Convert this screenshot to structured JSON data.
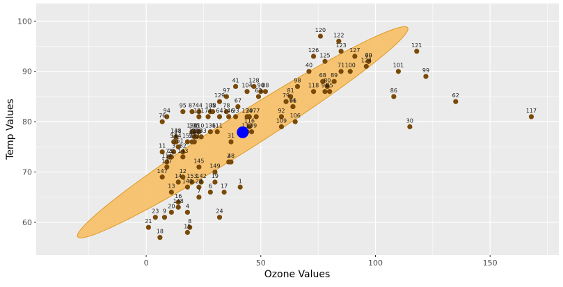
{
  "chart_data": {
    "type": "scatter",
    "title": "",
    "xlabel": "Ozone Values",
    "ylabel": "Temp Values",
    "xlim": [
      -48,
      180
    ],
    "ylim": [
      53.5,
      103.5
    ],
    "x_ticks": [
      0,
      50,
      100,
      150
    ],
    "y_ticks": [
      60,
      70,
      80,
      90,
      100
    ],
    "grid": true,
    "legend": "none",
    "colors": {
      "panel_background": "#ebebeb",
      "grid": "#ffffff",
      "points": "#7a4a08",
      "ellipse_fill": "#f5c16c",
      "ellipse_stroke": "#e09a24",
      "centroid": "#0000ff"
    },
    "centroid": {
      "x": 42.1,
      "y": 77.9
    },
    "ellipse": {
      "center": [
        42.1,
        77.9
      ],
      "semi_axes": [
        84.0,
        7.5
      ],
      "angle_deg": 31
    },
    "points": [
      {
        "label": "1",
        "x": 41,
        "y": 67
      },
      {
        "label": "2",
        "x": 36,
        "y": 72
      },
      {
        "label": "3",
        "x": 12,
        "y": 74
      },
      {
        "label": "4",
        "x": 18,
        "y": 62
      },
      {
        "label": "6",
        "x": 28,
        "y": 66
      },
      {
        "label": "7",
        "x": 23,
        "y": 65
      },
      {
        "label": "8",
        "x": 19,
        "y": 59
      },
      {
        "label": "9",
        "x": 8,
        "y": 61
      },
      {
        "label": "11",
        "x": 7,
        "y": 74
      },
      {
        "label": "12",
        "x": 16,
        "y": 69
      },
      {
        "label": "13",
        "x": 11,
        "y": 66
      },
      {
        "label": "14",
        "x": 14,
        "y": 68
      },
      {
        "label": "15",
        "x": 18,
        "y": 58
      },
      {
        "label": "16",
        "x": 14,
        "y": 64
      },
      {
        "label": "17",
        "x": 34,
        "y": 66
      },
      {
        "label": "18",
        "x": 6,
        "y": 57
      },
      {
        "label": "19",
        "x": 30,
        "y": 68
      },
      {
        "label": "20",
        "x": 11,
        "y": 62
      },
      {
        "label": "21",
        "x": 1,
        "y": 59
      },
      {
        "label": "22",
        "x": 11,
        "y": 73
      },
      {
        "label": "23",
        "x": 4,
        "y": 61
      },
      {
        "label": "24",
        "x": 32,
        "y": 61
      },
      {
        "label": "28",
        "x": 23,
        "y": 67
      },
      {
        "label": "29",
        "x": 45,
        "y": 81
      },
      {
        "label": "30",
        "x": 115,
        "y": 79
      },
      {
        "label": "31",
        "x": 37,
        "y": 76
      },
      {
        "label": "38",
        "x": 29,
        "y": 82
      },
      {
        "label": "40",
        "x": 71,
        "y": 90
      },
      {
        "label": "41",
        "x": 39,
        "y": 87
      },
      {
        "label": "44",
        "x": 23,
        "y": 82
      },
      {
        "label": "47",
        "x": 21,
        "y": 77
      },
      {
        "label": "48",
        "x": 37,
        "y": 72
      },
      {
        "label": "50",
        "x": 20,
        "y": 76
      },
      {
        "label": "51",
        "x": 12,
        "y": 76
      },
      {
        "label": "62",
        "x": 135,
        "y": 84
      },
      {
        "label": "63",
        "x": 49,
        "y": 85
      },
      {
        "label": "64",
        "x": 32,
        "y": 81
      },
      {
        "label": "66",
        "x": 64,
        "y": 83
      },
      {
        "label": "67",
        "x": 40,
        "y": 83
      },
      {
        "label": "68",
        "x": 77,
        "y": 88
      },
      {
        "label": "69",
        "x": 97,
        "y": 92
      },
      {
        "label": "70",
        "x": 97,
        "y": 92
      },
      {
        "label": "71",
        "x": 85,
        "y": 90
      },
      {
        "label": "73",
        "x": 10,
        "y": 73
      },
      {
        "label": "74",
        "x": 27,
        "y": 81
      },
      {
        "label": "76",
        "x": 7,
        "y": 80
      },
      {
        "label": "77",
        "x": 48,
        "y": 81
      },
      {
        "label": "78",
        "x": 35,
        "y": 82
      },
      {
        "label": "79",
        "x": 61,
        "y": 84
      },
      {
        "label": "80",
        "x": 79,
        "y": 87
      },
      {
        "label": "81",
        "x": 63,
        "y": 85
      },
      {
        "label": "82",
        "x": 16,
        "y": 74
      },
      {
        "label": "85",
        "x": 80,
        "y": 86
      },
      {
        "label": "86",
        "x": 108,
        "y": 85
      },
      {
        "label": "87",
        "x": 20,
        "y": 82
      },
      {
        "label": "88",
        "x": 52,
        "y": 86
      },
      {
        "label": "89",
        "x": 82,
        "y": 88
      },
      {
        "label": "90",
        "x": 50,
        "y": 86
      },
      {
        "label": "91",
        "x": 64,
        "y": 83
      },
      {
        "label": "92",
        "x": 59,
        "y": 81
      },
      {
        "label": "93",
        "x": 39,
        "y": 81
      },
      {
        "label": "94",
        "x": 9,
        "y": 81
      },
      {
        "label": "95",
        "x": 16,
        "y": 82
      },
      {
        "label": "96",
        "x": 78,
        "y": 86
      },
      {
        "label": "97",
        "x": 35,
        "y": 85
      },
      {
        "label": "98",
        "x": 66,
        "y": 87
      },
      {
        "label": "99",
        "x": 122,
        "y": 89
      },
      {
        "label": "100",
        "x": 89,
        "y": 90
      },
      {
        "label": "101",
        "x": 110,
        "y": 90
      },
      {
        "label": "104",
        "x": 44,
        "y": 86
      },
      {
        "label": "105",
        "x": 28,
        "y": 82
      },
      {
        "label": "106",
        "x": 65,
        "y": 80
      },
      {
        "label": "108",
        "x": 22,
        "y": 77
      },
      {
        "label": "109",
        "x": 59,
        "y": 79
      },
      {
        "label": "110",
        "x": 23,
        "y": 78
      },
      {
        "label": "111",
        "x": 31,
        "y": 78
      },
      {
        "label": "112",
        "x": 44,
        "y": 78
      },
      {
        "label": "113",
        "x": 21,
        "y": 77
      },
      {
        "label": "114",
        "x": 9,
        "y": 72
      },
      {
        "label": "116",
        "x": 45,
        "y": 79
      },
      {
        "label": "117",
        "x": 168,
        "y": 81
      },
      {
        "label": "118",
        "x": 73,
        "y": 86
      },
      {
        "label": "120",
        "x": 76,
        "y": 97
      },
      {
        "label": "121",
        "x": 118,
        "y": 94
      },
      {
        "label": "122",
        "x": 84,
        "y": 96
      },
      {
        "label": "123",
        "x": 85,
        "y": 94
      },
      {
        "label": "124",
        "x": 96,
        "y": 91
      },
      {
        "label": "125",
        "x": 78,
        "y": 92
      },
      {
        "label": "126",
        "x": 73,
        "y": 93
      },
      {
        "label": "127",
        "x": 91,
        "y": 93
      },
      {
        "label": "128",
        "x": 47,
        "y": 87
      },
      {
        "label": "129",
        "x": 32,
        "y": 84
      },
      {
        "label": "130",
        "x": 20,
        "y": 78
      },
      {
        "label": "131",
        "x": 23,
        "y": 81
      },
      {
        "label": "132",
        "x": 21,
        "y": 76
      },
      {
        "label": "133",
        "x": 24,
        "y": 77
      },
      {
        "label": "134",
        "x": 44,
        "y": 81
      },
      {
        "label": "135",
        "x": 21,
        "y": 78
      },
      {
        "label": "136",
        "x": 28,
        "y": 78
      },
      {
        "label": "137",
        "x": 9,
        "y": 71
      },
      {
        "label": "138",
        "x": 13,
        "y": 77
      },
      {
        "label": "139",
        "x": 46,
        "y": 78
      },
      {
        "label": "140",
        "x": 18,
        "y": 67
      },
      {
        "label": "141",
        "x": 13,
        "y": 77
      },
      {
        "label": "142",
        "x": 24,
        "y": 68
      },
      {
        "label": "143",
        "x": 16,
        "y": 73
      },
      {
        "label": "144",
        "x": 13,
        "y": 76
      },
      {
        "label": "145",
        "x": 23,
        "y": 71
      },
      {
        "label": "146",
        "x": 36,
        "y": 81
      },
      {
        "label": "147",
        "x": 7,
        "y": 69
      },
      {
        "label": "148",
        "x": 14,
        "y": 63
      },
      {
        "label": "149",
        "x": 30,
        "y": 70
      },
      {
        "label": "151",
        "x": 14,
        "y": 75
      },
      {
        "label": "152",
        "x": 18,
        "y": 76
      },
      {
        "label": "153",
        "x": 20,
        "y": 68
      }
    ]
  }
}
